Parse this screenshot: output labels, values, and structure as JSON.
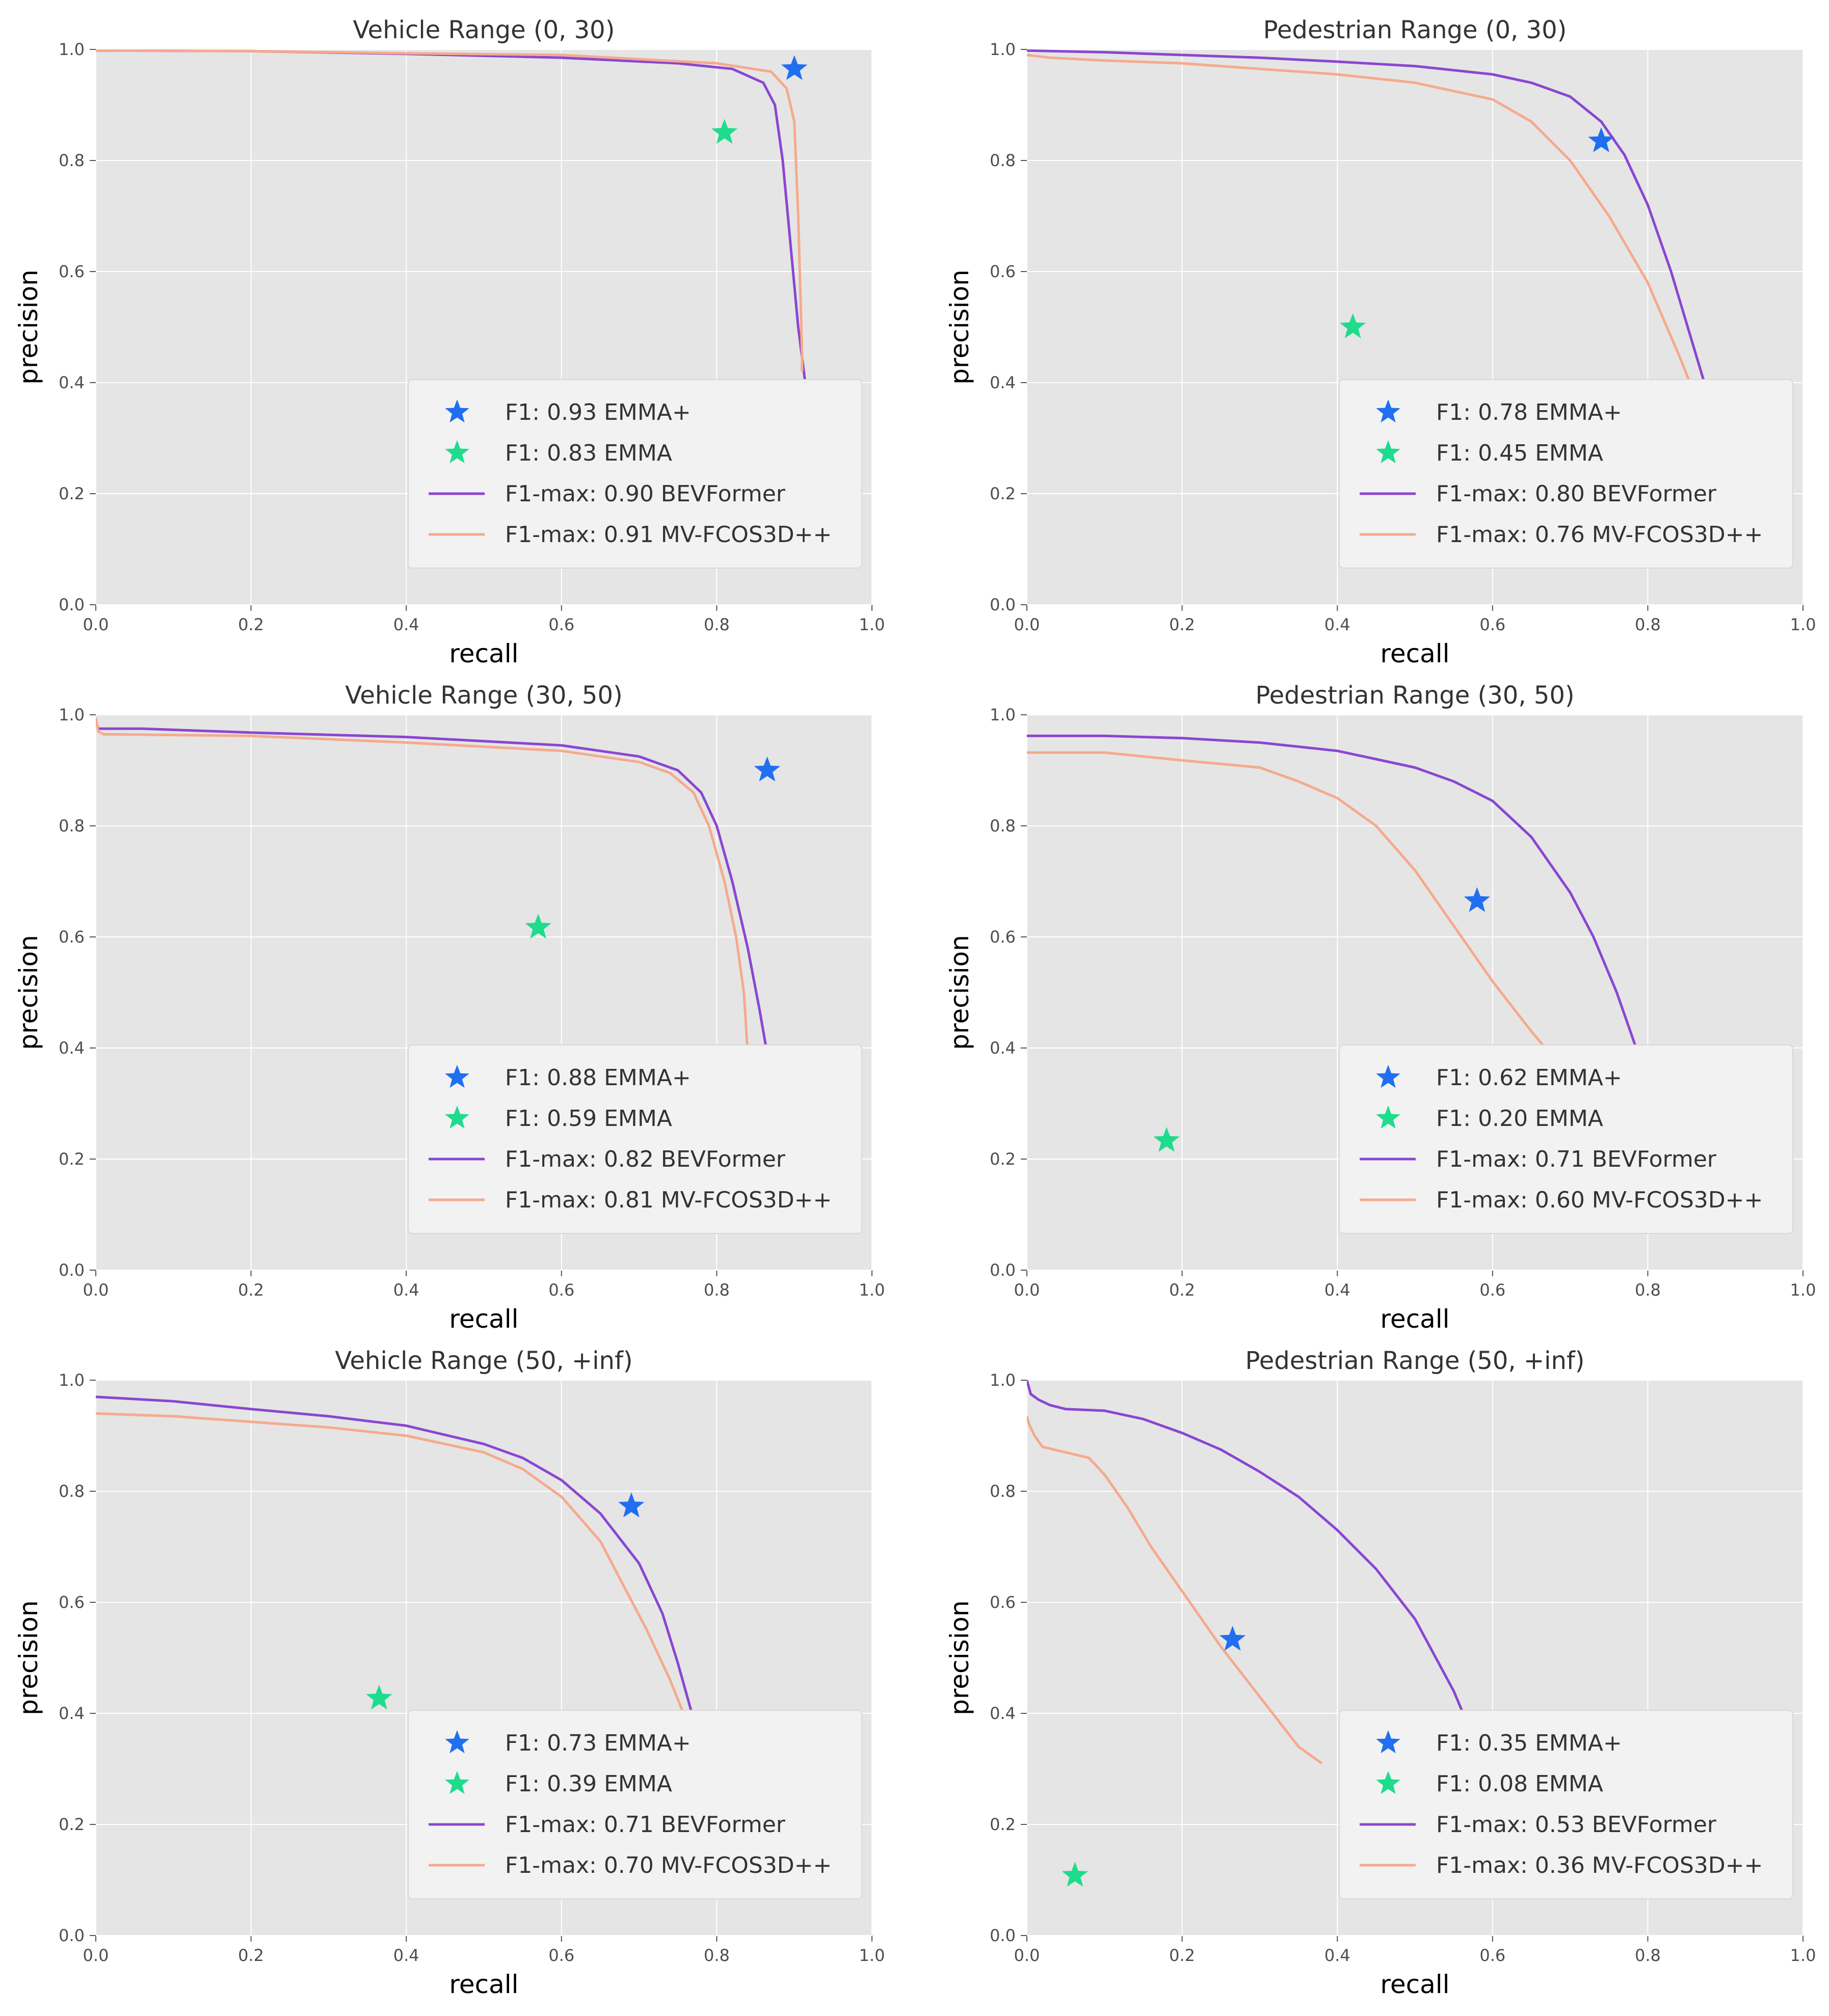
{
  "colors": {
    "emma_plus": "#1f6ff0",
    "emma": "#1edc8c",
    "bevformer": "#8a46d2",
    "mvfcos": "#f5aa8c"
  },
  "chart_data": [
    {
      "type": "line",
      "title": "Vehicle Range (0, 30)",
      "xlabel": "recall",
      "ylabel": "precision",
      "xlim": [
        0,
        1
      ],
      "ylim": [
        0,
        1
      ],
      "xticks": [
        "0.0",
        "0.2",
        "0.4",
        "0.6",
        "0.8",
        "1.0"
      ],
      "yticks": [
        "0.0",
        "0.2",
        "0.4",
        "0.6",
        "0.8",
        "1.0"
      ],
      "grid": true,
      "legend_position": "lower-right",
      "points": [
        {
          "name": "EMMA+",
          "label": "F1: 0.93 EMMA+",
          "x": 0.9,
          "y": 0.965,
          "marker": "star",
          "color": "#1f6ff0"
        },
        {
          "name": "EMMA",
          "label": "F1: 0.83 EMMA",
          "x": 0.81,
          "y": 0.85,
          "marker": "star",
          "color": "#1edc8c"
        }
      ],
      "series": [
        {
          "name": "BEVFormer",
          "label": "F1-max: 0.90 BEVFormer",
          "color": "#8a46d2",
          "x": [
            0.0,
            0.2,
            0.4,
            0.6,
            0.75,
            0.82,
            0.86,
            0.875,
            0.885,
            0.895,
            0.905,
            0.915
          ],
          "y": [
            0.998,
            0.997,
            0.992,
            0.985,
            0.975,
            0.965,
            0.94,
            0.9,
            0.8,
            0.65,
            0.5,
            0.39
          ]
        },
        {
          "name": "MV-FCOS3D++",
          "label": "F1-max: 0.91 MV-FCOS3D++",
          "color": "#f5aa8c",
          "x": [
            0.0,
            0.2,
            0.4,
            0.6,
            0.8,
            0.87,
            0.89,
            0.9,
            0.905,
            0.908,
            0.91,
            0.91
          ],
          "y": [
            0.998,
            0.997,
            0.993,
            0.99,
            0.975,
            0.96,
            0.93,
            0.87,
            0.7,
            0.55,
            0.45,
            0.42
          ]
        }
      ]
    },
    {
      "type": "line",
      "title": "Pedestrian Range (0, 30)",
      "xlabel": "recall",
      "ylabel": "precision",
      "xlim": [
        0,
        1
      ],
      "ylim": [
        0,
        1
      ],
      "xticks": [
        "0.0",
        "0.2",
        "0.4",
        "0.6",
        "0.8",
        "1.0"
      ],
      "yticks": [
        "0.0",
        "0.2",
        "0.4",
        "0.6",
        "0.8",
        "1.0"
      ],
      "grid": true,
      "legend_position": "lower-right",
      "points": [
        {
          "name": "EMMA+",
          "label": "F1: 0.78 EMMA+",
          "x": 0.74,
          "y": 0.835,
          "marker": "star",
          "color": "#1f6ff0"
        },
        {
          "name": "EMMA",
          "label": "F1: 0.45 EMMA",
          "x": 0.42,
          "y": 0.5,
          "marker": "star",
          "color": "#1edc8c"
        }
      ],
      "series": [
        {
          "name": "BEVFormer",
          "label": "F1-max: 0.80 BEVFormer",
          "color": "#8a46d2",
          "x": [
            0.0,
            0.1,
            0.2,
            0.3,
            0.4,
            0.5,
            0.6,
            0.65,
            0.7,
            0.74,
            0.77,
            0.8,
            0.83,
            0.86,
            0.875
          ],
          "y": [
            0.998,
            0.995,
            0.99,
            0.985,
            0.978,
            0.97,
            0.955,
            0.94,
            0.915,
            0.87,
            0.81,
            0.72,
            0.6,
            0.46,
            0.39
          ]
        },
        {
          "name": "MV-FCOS3D++",
          "label": "F1-max: 0.76 MV-FCOS3D++",
          "color": "#f5aa8c",
          "x": [
            0.0,
            0.03,
            0.1,
            0.2,
            0.3,
            0.4,
            0.5,
            0.6,
            0.65,
            0.7,
            0.75,
            0.8,
            0.84,
            0.86
          ],
          "y": [
            0.99,
            0.985,
            0.98,
            0.975,
            0.965,
            0.955,
            0.94,
            0.91,
            0.87,
            0.8,
            0.7,
            0.58,
            0.45,
            0.38
          ]
        }
      ]
    },
    {
      "type": "line",
      "title": "Vehicle Range (30, 50)",
      "xlabel": "recall",
      "ylabel": "precision",
      "xlim": [
        0,
        1
      ],
      "ylim": [
        0,
        1
      ],
      "xticks": [
        "0.0",
        "0.2",
        "0.4",
        "0.6",
        "0.8",
        "1.0"
      ],
      "yticks": [
        "0.0",
        "0.2",
        "0.4",
        "0.6",
        "0.8",
        "1.0"
      ],
      "grid": true,
      "legend_position": "lower-right",
      "points": [
        {
          "name": "EMMA+",
          "label": "F1: 0.88 EMMA+",
          "x": 0.865,
          "y": 0.9,
          "marker": "star",
          "color": "#1f6ff0"
        },
        {
          "name": "EMMA",
          "label": "F1: 0.59 EMMA",
          "x": 0.57,
          "y": 0.617,
          "marker": "star",
          "color": "#1edc8c"
        }
      ],
      "series": [
        {
          "name": "BEVFormer",
          "label": "F1-max: 0.82 BEVFormer",
          "color": "#8a46d2",
          "x": [
            0.0,
            0.003,
            0.06,
            0.2,
            0.4,
            0.6,
            0.7,
            0.75,
            0.78,
            0.8,
            0.82,
            0.84,
            0.855,
            0.865
          ],
          "y": [
            0.99,
            0.975,
            0.975,
            0.968,
            0.96,
            0.945,
            0.925,
            0.9,
            0.86,
            0.8,
            0.7,
            0.58,
            0.47,
            0.39
          ]
        },
        {
          "name": "MV-FCOS3D++",
          "label": "F1-max: 0.81 MV-FCOS3D++",
          "color": "#f5aa8c",
          "x": [
            0.0,
            0.003,
            0.01,
            0.2,
            0.4,
            0.6,
            0.7,
            0.74,
            0.77,
            0.79,
            0.81,
            0.825,
            0.835,
            0.84
          ],
          "y": [
            0.995,
            0.97,
            0.965,
            0.962,
            0.95,
            0.935,
            0.915,
            0.895,
            0.86,
            0.8,
            0.7,
            0.6,
            0.5,
            0.39
          ]
        }
      ]
    },
    {
      "type": "line",
      "title": "Pedestrian Range (30, 50)",
      "xlabel": "recall",
      "ylabel": "precision",
      "xlim": [
        0,
        1
      ],
      "ylim": [
        0,
        1
      ],
      "xticks": [
        "0.0",
        "0.2",
        "0.4",
        "0.6",
        "0.8",
        "1.0"
      ],
      "yticks": [
        "0.0",
        "0.2",
        "0.4",
        "0.6",
        "0.8",
        "1.0"
      ],
      "grid": true,
      "legend_position": "lower-right",
      "points": [
        {
          "name": "EMMA+",
          "label": "F1: 0.62 EMMA+",
          "x": 0.58,
          "y": 0.665,
          "marker": "star",
          "color": "#1f6ff0"
        },
        {
          "name": "EMMA",
          "label": "F1: 0.20 EMMA",
          "x": 0.18,
          "y": 0.233,
          "marker": "star",
          "color": "#1edc8c"
        }
      ],
      "series": [
        {
          "name": "BEVFormer",
          "label": "F1-max: 0.71 BEVFormer",
          "color": "#8a46d2",
          "x": [
            0.0,
            0.1,
            0.2,
            0.3,
            0.4,
            0.5,
            0.55,
            0.6,
            0.65,
            0.7,
            0.73,
            0.76,
            0.79
          ],
          "y": [
            0.962,
            0.962,
            0.958,
            0.95,
            0.935,
            0.905,
            0.88,
            0.845,
            0.78,
            0.68,
            0.6,
            0.5,
            0.38
          ]
        },
        {
          "name": "MV-FCOS3D++",
          "label": "F1-max: 0.60 MV-FCOS3D++",
          "color": "#f5aa8c",
          "x": [
            0.0,
            0.1,
            0.2,
            0.3,
            0.35,
            0.4,
            0.45,
            0.5,
            0.55,
            0.6,
            0.65,
            0.68
          ],
          "y": [
            0.932,
            0.932,
            0.918,
            0.905,
            0.88,
            0.85,
            0.8,
            0.72,
            0.62,
            0.52,
            0.43,
            0.38
          ]
        }
      ]
    },
    {
      "type": "line",
      "title": "Vehicle Range (50, +inf)",
      "xlabel": "recall",
      "ylabel": "precision",
      "xlim": [
        0,
        1
      ],
      "ylim": [
        0,
        1
      ],
      "xticks": [
        "0.0",
        "0.2",
        "0.4",
        "0.6",
        "0.8",
        "1.0"
      ],
      "yticks": [
        "0.0",
        "0.2",
        "0.4",
        "0.6",
        "0.8",
        "1.0"
      ],
      "grid": true,
      "legend_position": "lower-right",
      "points": [
        {
          "name": "EMMA+",
          "label": "F1: 0.73 EMMA+",
          "x": 0.69,
          "y": 0.773,
          "marker": "star",
          "color": "#1f6ff0"
        },
        {
          "name": "EMMA",
          "label": "F1: 0.39 EMMA",
          "x": 0.365,
          "y": 0.427,
          "marker": "star",
          "color": "#1edc8c"
        }
      ],
      "series": [
        {
          "name": "BEVFormer",
          "label": "F1-max: 0.71 BEVFormer",
          "color": "#8a46d2",
          "x": [
            0.0,
            0.1,
            0.2,
            0.3,
            0.4,
            0.5,
            0.55,
            0.6,
            0.65,
            0.7,
            0.73,
            0.75,
            0.77
          ],
          "y": [
            0.97,
            0.962,
            0.948,
            0.935,
            0.918,
            0.885,
            0.86,
            0.82,
            0.76,
            0.67,
            0.58,
            0.49,
            0.39
          ]
        },
        {
          "name": "MV-FCOS3D++",
          "label": "F1-max: 0.70 MV-FCOS3D++",
          "color": "#f5aa8c",
          "x": [
            0.0,
            0.1,
            0.2,
            0.3,
            0.4,
            0.5,
            0.55,
            0.6,
            0.65,
            0.68,
            0.71,
            0.74,
            0.76
          ],
          "y": [
            0.94,
            0.935,
            0.925,
            0.915,
            0.9,
            0.87,
            0.84,
            0.79,
            0.71,
            0.63,
            0.55,
            0.46,
            0.39
          ]
        }
      ]
    },
    {
      "type": "line",
      "title": "Pedestrian Range (50, +inf)",
      "xlabel": "recall",
      "ylabel": "precision",
      "xlim": [
        0,
        1
      ],
      "ylim": [
        0,
        1
      ],
      "xticks": [
        "0.0",
        "0.2",
        "0.4",
        "0.6",
        "0.8",
        "1.0"
      ],
      "yticks": [
        "0.0",
        "0.2",
        "0.4",
        "0.6",
        "0.8",
        "1.0"
      ],
      "grid": true,
      "legend_position": "lower-right",
      "points": [
        {
          "name": "EMMA+",
          "label": "F1: 0.35 EMMA+",
          "x": 0.265,
          "y": 0.533,
          "marker": "star",
          "color": "#1f6ff0"
        },
        {
          "name": "EMMA",
          "label": "F1: 0.08 EMMA",
          "x": 0.062,
          "y": 0.108,
          "marker": "star",
          "color": "#1edc8c"
        }
      ],
      "series": [
        {
          "name": "BEVFormer",
          "label": "F1-max: 0.53 BEVFormer",
          "color": "#8a46d2",
          "x": [
            0.0,
            0.005,
            0.015,
            0.03,
            0.05,
            0.1,
            0.15,
            0.2,
            0.25,
            0.3,
            0.35,
            0.4,
            0.45,
            0.5,
            0.55,
            0.565
          ],
          "y": [
            1.0,
            0.975,
            0.965,
            0.955,
            0.948,
            0.945,
            0.93,
            0.905,
            0.875,
            0.835,
            0.79,
            0.73,
            0.66,
            0.57,
            0.44,
            0.39
          ]
        },
        {
          "name": "MV-FCOS3D++",
          "label": "F1-max: 0.36 MV-FCOS3D++",
          "color": "#f5aa8c",
          "x": [
            0.0,
            0.003,
            0.01,
            0.02,
            0.05,
            0.08,
            0.1,
            0.13,
            0.16,
            0.2,
            0.25,
            0.3,
            0.35,
            0.38
          ],
          "y": [
            0.935,
            0.92,
            0.9,
            0.88,
            0.87,
            0.86,
            0.83,
            0.77,
            0.7,
            0.62,
            0.52,
            0.43,
            0.34,
            0.31
          ]
        }
      ]
    }
  ]
}
